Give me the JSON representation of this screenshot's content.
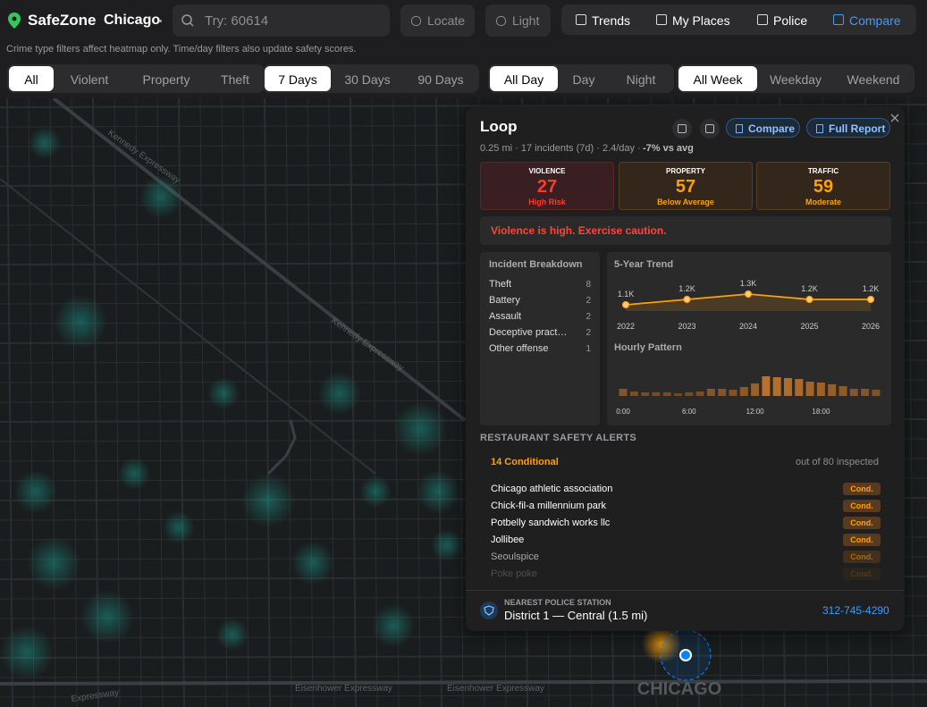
{
  "header": {
    "logo": "SafeZone",
    "city": "Chicago",
    "search_placeholder": "Try: 60614",
    "buttons": [
      "Locate",
      "Light"
    ],
    "nav": {
      "items": [
        "Trends",
        "My Places",
        "Police",
        "Compare"
      ],
      "active": 3
    }
  },
  "notice": "Crime type filters affect heatmap only. Time/day filters also update safety scores.",
  "filters": [
    {
      "options": [
        "All",
        "Violent",
        "Property",
        "Theft"
      ],
      "selected": 0
    },
    {
      "options": [
        "7 Days",
        "30 Days",
        "90 Days"
      ],
      "selected": 0
    },
    {
      "options": [
        "All Day",
        "Day",
        "Night"
      ],
      "selected": 0
    },
    {
      "options": [
        "All Week",
        "Weekday",
        "Weekend"
      ],
      "selected": 0
    }
  ],
  "map": {
    "road_labels": [
      "Kennedy Expressway",
      "Kennedy Expressway",
      "Eisenhower Expressway",
      "Eisenhower Expressway",
      "Expressway"
    ],
    "city_label": "CHICAGO"
  },
  "panel": {
    "title": "Loop",
    "buttons": [
      "Compare",
      "Full Report"
    ],
    "stats": "0.25 mi · 17 incidents (7d) · 2.4/day ·",
    "vs_avg": "-7% vs avg",
    "scores": [
      {
        "label": "VIOLENCE",
        "value": 27,
        "level": "High Risk",
        "color": "#ff3b30"
      },
      {
        "label": "PROPERTY",
        "value": 57,
        "level": "Below Average",
        "color": "#ff9f0a"
      },
      {
        "label": "TRAFFIC",
        "value": 59,
        "level": "Moderate",
        "color": "#ff9f0a"
      }
    ],
    "alert": "Violence is high. Exercise caution.",
    "breakdown": {
      "title": "Incident Breakdown",
      "rows": [
        {
          "name": "Theft",
          "count": 8
        },
        {
          "name": "Battery",
          "count": 2
        },
        {
          "name": "Assault",
          "count": 2
        },
        {
          "name": "Deceptive pract…",
          "count": 2
        },
        {
          "name": "Other offense",
          "count": 1
        }
      ]
    },
    "trend": {
      "type": "line",
      "title": "5-Year Trend",
      "categories": [
        "2022",
        "2023",
        "2024",
        "2025",
        "2026"
      ],
      "values": [
        1100,
        1200,
        1300,
        1200,
        1200
      ],
      "value_labels": [
        "1.1K",
        "1.2K",
        "1.3K",
        "1.2K",
        "1.2K"
      ],
      "color": "#ff9f0a"
    },
    "hourly": {
      "type": "bar",
      "title": "Hourly Pattern",
      "categories": [
        "0:00",
        null,
        null,
        null,
        null,
        null,
        "6:00",
        null,
        null,
        null,
        null,
        null,
        "12:00",
        null,
        null,
        null,
        null,
        null,
        "18:00",
        null,
        null,
        null,
        null,
        null
      ],
      "values": [
        8,
        5,
        4,
        4,
        4,
        3,
        4,
        5,
        8,
        8,
        7,
        10,
        14,
        22,
        21,
        20,
        19,
        16,
        15,
        13,
        11,
        8,
        8,
        7
      ],
      "color": "#b8702a"
    },
    "restaurants": {
      "title": "RESTAURANT SAFETY ALERTS",
      "summary": "14 Conditional",
      "inspected": "out of 80 inspected",
      "rows": [
        {
          "name": "Chicago athletic association",
          "status": "Cond."
        },
        {
          "name": "Chick-fil-a millennium park",
          "status": "Cond."
        },
        {
          "name": "Potbelly sandwich works llc",
          "status": "Cond."
        },
        {
          "name": "Jollibee",
          "status": "Cond."
        },
        {
          "name": "Seoulspice",
          "status": "Cond."
        },
        {
          "name": "Poke poke",
          "status": "Cond."
        }
      ]
    },
    "police": {
      "label": "NEAREST POLICE STATION",
      "station": "District 1 — Central (1.5 mi)",
      "phone": "312-745-4290"
    }
  }
}
